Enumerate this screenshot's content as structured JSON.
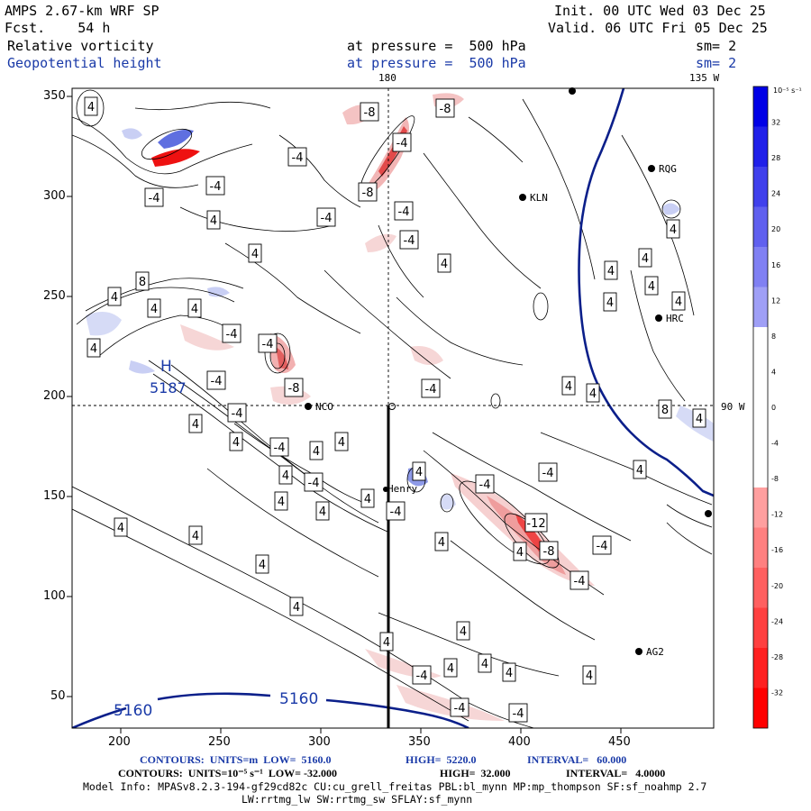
{
  "header": {
    "model": "AMPS 2.67-km WRF SP",
    "fcst": "Fcst.    54 h",
    "init": "Init. 00 UTC Wed 03 Dec 25",
    "valid": "Valid. 06 UTC Fri 05 Dec 25",
    "field1": "Relative vorticity",
    "field2": "Geopotential height",
    "pressure1": "at pressure =  500 hPa",
    "pressure2": "at pressure =  500 hPa",
    "sm1": "sm= 2",
    "sm2": "sm= 2"
  },
  "map": {
    "lon_labels": {
      "top_left": "180",
      "top_right": "135 W",
      "right": "90 W"
    },
    "x_ticks": [
      "200",
      "250",
      "300",
      "350",
      "400",
      "450"
    ],
    "y_ticks": [
      "350",
      "300",
      "250",
      "200",
      "150",
      "100",
      "50"
    ],
    "stations": [
      {
        "name": "KLN"
      },
      {
        "name": "RQG"
      },
      {
        "name": "HRC"
      },
      {
        "name": "NCO"
      },
      {
        "name": "Henry"
      },
      {
        "name": "AG2"
      }
    ],
    "height_labels": {
      "high": "H",
      "high_value": "5187",
      "low_left": "5160",
      "low_right": "5160"
    },
    "colors": {
      "height_contour": "#0b1f8a",
      "positive": "#0000e6",
      "negative": "#ff0000"
    }
  },
  "colorbar": {
    "unit": "10⁻⁵ s⁻¹",
    "labels": [
      "32",
      "28",
      "24",
      "20",
      "16",
      "12",
      "8",
      "4",
      "0",
      "-4",
      "-8",
      "-12",
      "-16",
      "-20",
      "-24",
      "-28",
      "-32"
    ]
  },
  "footer": {
    "line1_a": "CONTOURS:  UNITS=m  LOW=  5160.0",
    "line1_b": "HIGH=  5220.0",
    "line1_c": "INTERVAL=   60.000",
    "line2_a": "CONTOURS:  UNITS=10⁻⁵ s⁻¹  LOW= -32.000",
    "line2_b": "HIGH=  32.000",
    "line2_c": "INTERVAL=   4.0000",
    "line3": "Model Info: MPASv8.2.3-194-gf29cd82c CU:cu_grell_freitas PBL:bl_mynn MP:mp_thompson SF:sf_noahmp 2.7",
    "line4": "LW:rrtmg_lw SW:rrtmg_sw SFLAY:sf_mynn"
  }
}
